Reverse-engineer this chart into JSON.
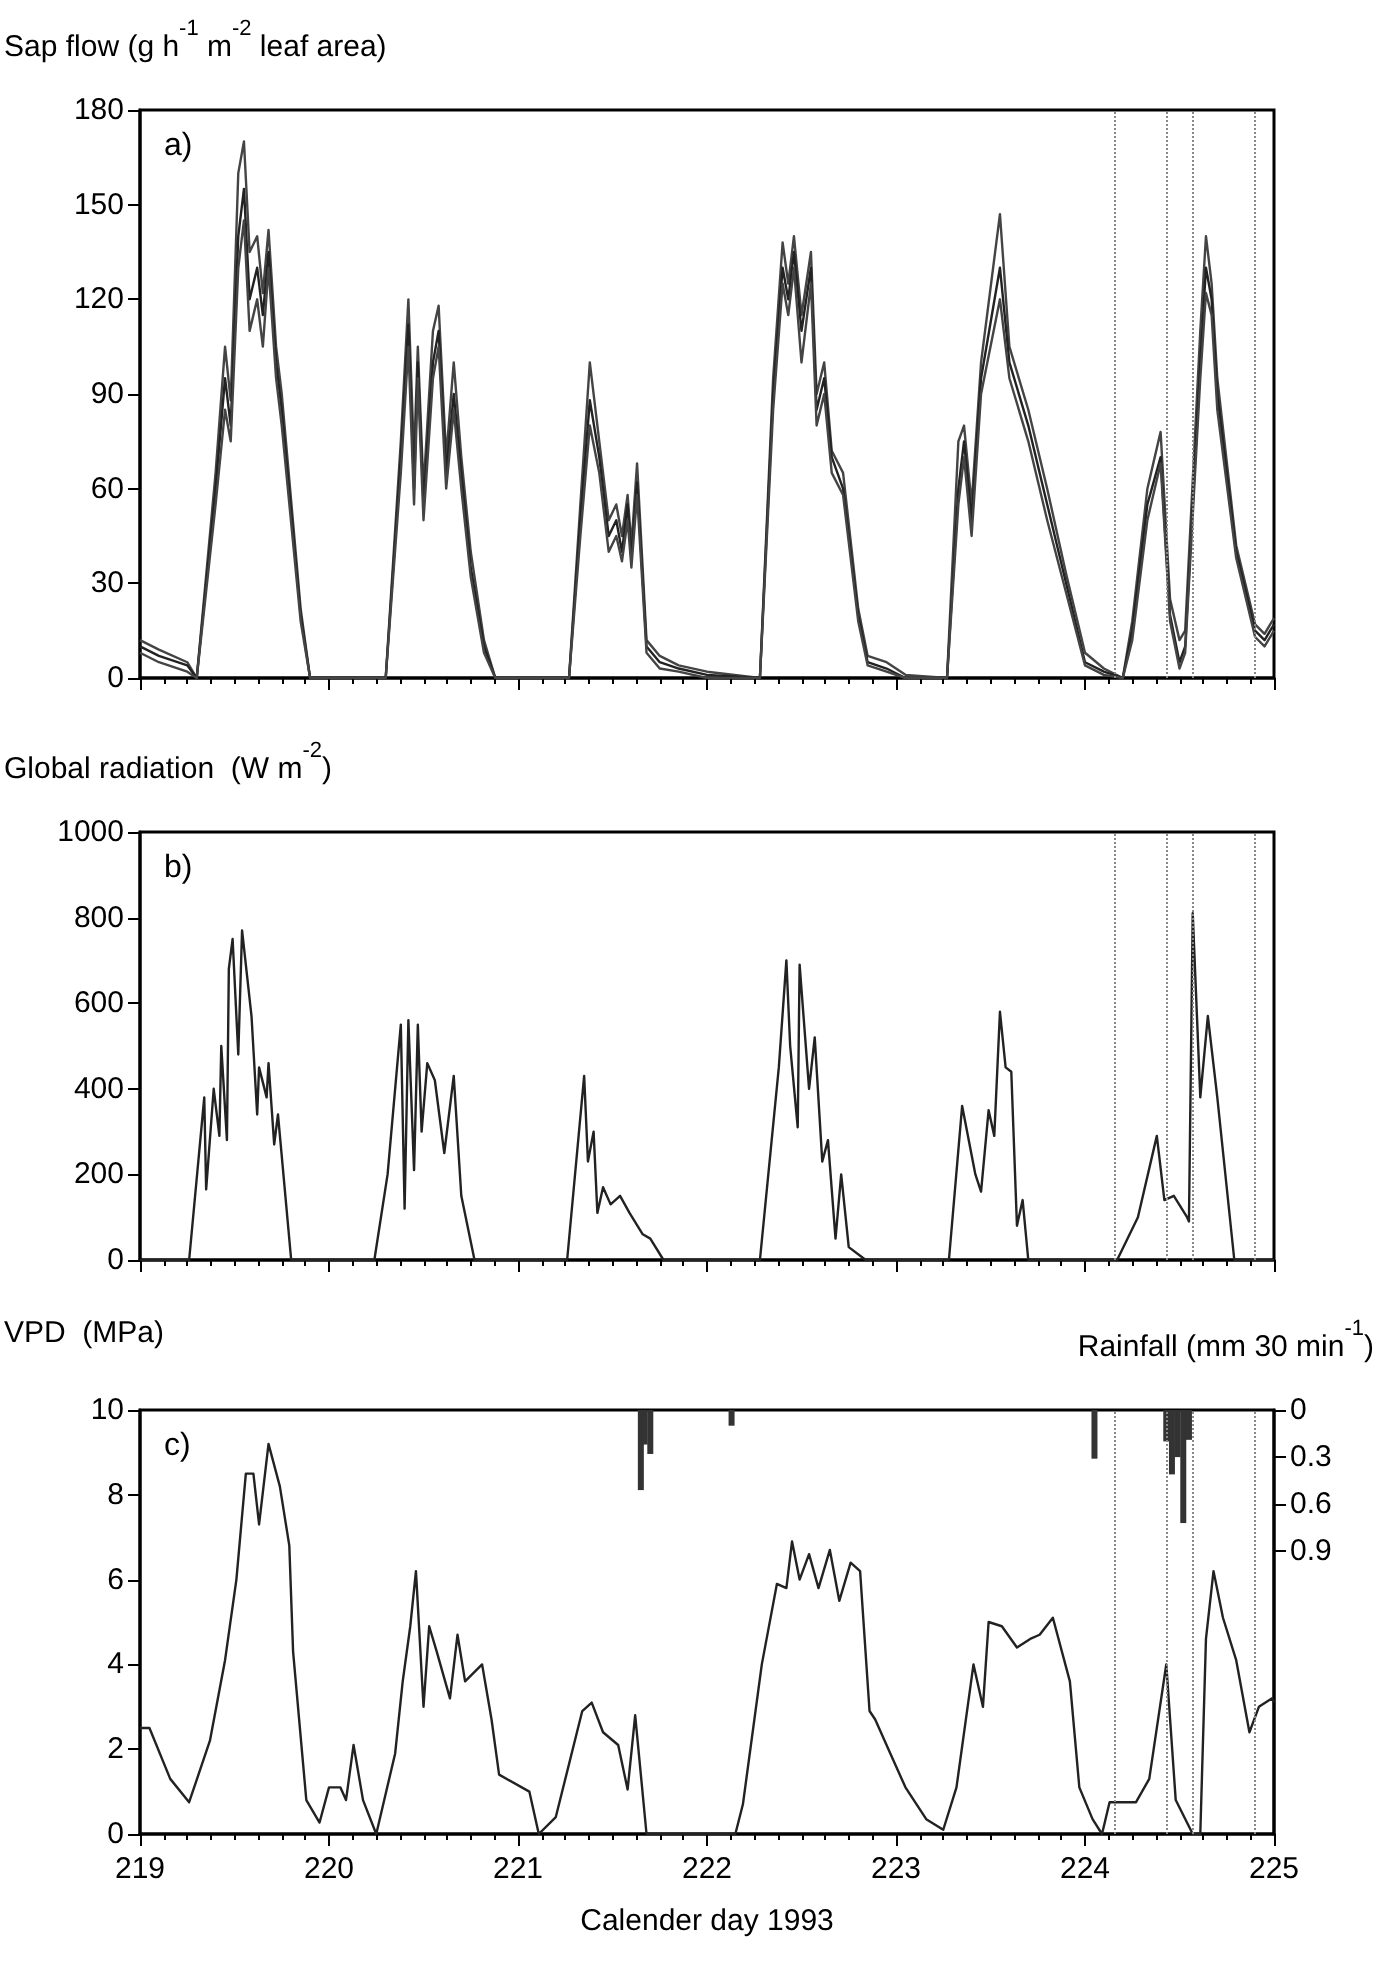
{
  "chart_data": [
    {
      "type": "line",
      "ylabel": "Sap flow (g h$^{-1}$ m$^{-2}$ leaf area)",
      "annotations": [
        "a)"
      ],
      "x": [
        219.0,
        219.1,
        219.25,
        219.3,
        219.4,
        219.45,
        219.48,
        219.52,
        219.55,
        219.58,
        219.62,
        219.65,
        219.68,
        219.72,
        219.75,
        219.85,
        219.9,
        220.0,
        220.3,
        220.38,
        220.42,
        220.45,
        220.47,
        220.5,
        220.55,
        220.58,
        220.62,
        220.66,
        220.7,
        220.75,
        220.82,
        220.88,
        221.27,
        221.33,
        221.38,
        221.43,
        221.48,
        221.52,
        221.55,
        221.58,
        221.6,
        221.63,
        221.68,
        221.75,
        221.85,
        222.0,
        222.28,
        222.35,
        222.4,
        222.43,
        222.46,
        222.5,
        222.55,
        222.58,
        222.62,
        222.66,
        222.72,
        222.8,
        222.85,
        222.95,
        223.05,
        223.27,
        223.33,
        223.36,
        223.4,
        223.45,
        223.55,
        223.6,
        223.7,
        223.8,
        223.9,
        224.0,
        224.1,
        224.2,
        224.25,
        224.33,
        224.4,
        224.45,
        224.5,
        224.53,
        224.61,
        224.64,
        224.67,
        224.7,
        224.8,
        224.9,
        224.95,
        225.0
      ],
      "series": [
        {
          "color": "#444444",
          "values": [
            12,
            9,
            5,
            0,
            65,
            105,
            88,
            160,
            170,
            135,
            140,
            122,
            142,
            105,
            90,
            22,
            0,
            0,
            0,
            75,
            120,
            70,
            105,
            60,
            110,
            118,
            70,
            100,
            70,
            40,
            12,
            0,
            0,
            55,
            100,
            75,
            50,
            55,
            45,
            58,
            42,
            68,
            12,
            7,
            4,
            2,
            0,
            95,
            138,
            125,
            140,
            115,
            135,
            90,
            100,
            72,
            65,
            22,
            7,
            5,
            1,
            0,
            75,
            80,
            55,
            100,
            147,
            105,
            85,
            60,
            33,
            8,
            3,
            0,
            18,
            60,
            78,
            25,
            12,
            15,
            110,
            140,
            125,
            95,
            42,
            17,
            14,
            19
          ]
        },
        {
          "color": "#222222",
          "values": [
            10,
            7,
            4,
            0,
            60,
            95,
            80,
            140,
            155,
            120,
            130,
            115,
            135,
            100,
            85,
            20,
            0,
            0,
            0,
            70,
            112,
            60,
            100,
            55,
            100,
            110,
            65,
            90,
            65,
            35,
            10,
            0,
            0,
            50,
            88,
            70,
            45,
            50,
            40,
            55,
            38,
            62,
            10,
            5,
            3,
            1,
            0,
            90,
            130,
            120,
            135,
            110,
            130,
            85,
            95,
            70,
            60,
            20,
            5,
            3,
            0,
            0,
            60,
            75,
            50,
            95,
            130,
            100,
            80,
            55,
            30,
            5,
            2,
            0,
            15,
            55,
            70,
            20,
            5,
            10,
            100,
            130,
            120,
            90,
            40,
            15,
            12,
            17
          ]
        },
        {
          "color": "#444444",
          "values": [
            8,
            5,
            2,
            0,
            55,
            85,
            75,
            130,
            145,
            110,
            120,
            105,
            130,
            95,
            80,
            18,
            0,
            0,
            0,
            65,
            105,
            55,
            95,
            50,
            95,
            105,
            60,
            85,
            60,
            32,
            8,
            0,
            0,
            45,
            80,
            65,
            40,
            45,
            37,
            50,
            35,
            58,
            8,
            3,
            2,
            0,
            0,
            85,
            125,
            115,
            130,
            100,
            125,
            80,
            90,
            65,
            58,
            18,
            4,
            2,
            0,
            0,
            55,
            70,
            45,
            90,
            120,
            95,
            75,
            50,
            27,
            4,
            1,
            0,
            12,
            50,
            68,
            18,
            3,
            8,
            95,
            122,
            115,
            85,
            38,
            13,
            10,
            15
          ]
        }
      ],
      "xlim": [
        219,
        225
      ],
      "xticks": [
        219,
        220,
        221,
        222,
        223,
        224,
        225
      ],
      "ylim": [
        0,
        180
      ],
      "yticks": [
        0,
        30,
        60,
        90,
        120,
        150,
        180
      ],
      "tick_labels": "y",
      "grid": false,
      "marker": "none",
      "line_style": "solid",
      "ref_lines": [
        {
          "axis": "x",
          "value": 224.16,
          "color": "#888888",
          "line_style": "dotted"
        },
        {
          "axis": "x",
          "value": 224.43,
          "color": "#888888",
          "line_style": "dotted"
        },
        {
          "axis": "x",
          "value": 224.57,
          "color": "#888888",
          "line_style": "dotted"
        },
        {
          "axis": "x",
          "value": 224.9,
          "color": "#888888",
          "line_style": "dotted"
        }
      ]
    },
    {
      "type": "line",
      "ylabel": "Global radiation  (W m$^{-2}$)",
      "annotations": [
        "b)"
      ],
      "series": [
        {
          "color": "#222222",
          "x": [
            219.0,
            219.26,
            219.34,
            219.35,
            219.39,
            219.42,
            219.43,
            219.46,
            219.47,
            219.49,
            219.52,
            219.54,
            219.59,
            219.62,
            219.63,
            219.67,
            219.68,
            219.71,
            219.73,
            219.8,
            220.24,
            220.31,
            220.38,
            220.4,
            220.42,
            220.45,
            220.47,
            220.49,
            220.52,
            220.56,
            220.61,
            220.66,
            220.7,
            220.77,
            221.26,
            221.35,
            221.37,
            221.4,
            221.42,
            221.45,
            221.49,
            221.54,
            221.59,
            221.66,
            221.7,
            221.77,
            222.28,
            222.38,
            222.42,
            222.44,
            222.48,
            222.49,
            222.54,
            222.57,
            222.61,
            222.64,
            222.68,
            222.71,
            222.75,
            222.84,
            223.28,
            223.35,
            223.42,
            223.45,
            223.49,
            223.52,
            223.55,
            223.58,
            223.61,
            223.64,
            223.67,
            223.7,
            224.17,
            224.28,
            224.38,
            224.42,
            224.47,
            224.54,
            224.55,
            224.57,
            224.61,
            224.65,
            224.7,
            224.79,
            225.0
          ],
          "values": [
            0,
            0,
            380,
            165,
            400,
            290,
            500,
            280,
            680,
            750,
            480,
            770,
            570,
            340,
            450,
            380,
            460,
            270,
            340,
            0,
            0,
            200,
            550,
            120,
            560,
            210,
            550,
            300,
            460,
            420,
            250,
            430,
            150,
            0,
            0,
            430,
            230,
            300,
            110,
            170,
            130,
            150,
            110,
            60,
            50,
            0,
            0,
            450,
            700,
            500,
            310,
            690,
            400,
            520,
            230,
            280,
            50,
            200,
            30,
            0,
            0,
            360,
            200,
            160,
            350,
            290,
            580,
            450,
            440,
            80,
            140,
            0,
            0,
            100,
            290,
            140,
            150,
            100,
            90,
            810,
            380,
            570,
            380,
            0,
            0
          ]
        }
      ],
      "xlim": [
        219,
        225
      ],
      "xticks": [
        219,
        220,
        221,
        222,
        223,
        224,
        225
      ],
      "ylim": [
        0,
        1000
      ],
      "yticks": [
        0,
        200,
        400,
        600,
        800,
        1000
      ],
      "tick_labels": "y",
      "grid": false,
      "marker": "none",
      "line_style": "solid",
      "ref_lines": [
        {
          "axis": "x",
          "value": 224.16,
          "color": "#888888",
          "line_style": "dotted"
        },
        {
          "axis": "x",
          "value": 224.43,
          "color": "#888888",
          "line_style": "dotted"
        },
        {
          "axis": "x",
          "value": 224.57,
          "color": "#888888",
          "line_style": "dotted"
        },
        {
          "axis": "x",
          "value": 224.9,
          "color": "#888888",
          "line_style": "dotted"
        }
      ]
    },
    {
      "type": "line",
      "ylabel": "VPD  (MPa)",
      "y2label": "Rainfall (mm 30 min$^{-1}$)",
      "xlabel": "Calender day 1993",
      "annotations": [
        "c)"
      ],
      "series": [
        {
          "type": "line",
          "color": "#222222",
          "x": [
            219.0,
            219.05,
            219.16,
            219.26,
            219.37,
            219.45,
            219.51,
            219.56,
            219.6,
            219.63,
            219.68,
            219.74,
            219.79,
            219.81,
            219.88,
            219.95,
            220.0,
            220.06,
            220.09,
            220.13,
            220.18,
            220.25,
            220.35,
            220.39,
            220.43,
            220.46,
            220.5,
            220.53,
            220.57,
            220.64,
            220.68,
            220.72,
            220.81,
            220.86,
            220.9,
            221.06,
            221.11,
            221.2,
            221.34,
            221.39,
            221.45,
            221.53,
            221.58,
            221.62,
            221.68,
            222.15,
            222.19,
            222.29,
            222.37,
            222.42,
            222.45,
            222.49,
            222.54,
            222.59,
            222.65,
            222.7,
            222.76,
            222.81,
            222.86,
            222.89,
            222.97,
            223.05,
            223.16,
            223.25,
            223.32,
            223.41,
            223.46,
            223.49,
            223.56,
            223.64,
            223.71,
            223.76,
            223.83,
            223.92,
            223.97,
            224.04,
            224.09,
            224.13,
            224.27,
            224.34,
            224.43,
            224.48,
            224.57,
            224.61,
            224.64,
            224.68,
            224.73,
            224.8,
            224.87,
            224.92,
            224.99,
            225.0
          ],
          "values": [
            2.5,
            2.5,
            1.3,
            0.75,
            2.2,
            4.1,
            6.0,
            8.5,
            8.5,
            7.3,
            9.2,
            8.2,
            6.8,
            4.3,
            0.8,
            0.27,
            1.1,
            1.1,
            0.8,
            2.1,
            0.8,
            0,
            1.9,
            3.6,
            4.9,
            6.2,
            3.0,
            4.9,
            4.3,
            3.2,
            4.7,
            3.6,
            4.0,
            2.7,
            1.4,
            1.0,
            0,
            0.4,
            2.9,
            3.1,
            2.4,
            2.1,
            1.05,
            2.8,
            0,
            0,
            0.7,
            4.0,
            5.9,
            5.8,
            6.9,
            6.0,
            6.6,
            5.8,
            6.7,
            5.5,
            6.4,
            6.2,
            2.9,
            2.7,
            1.9,
            1.1,
            0.35,
            0.1,
            1.1,
            4.0,
            3.0,
            5.0,
            4.9,
            4.4,
            4.6,
            4.7,
            5.1,
            3.6,
            1.1,
            0.35,
            0,
            0.75,
            0.75,
            1.3,
            4.0,
            0.8,
            0,
            0,
            4.6,
            6.2,
            5.1,
            4.1,
            2.4,
            3.0,
            3.2,
            3.1
          ]
        },
        {
          "type": "bar",
          "axis": "y2",
          "color": "#333333",
          "x": [
            221.65,
            221.67,
            221.7,
            222.13,
            224.05,
            224.43,
            224.46,
            224.49,
            224.52,
            224.55
          ],
          "values": [
            0.51,
            0.22,
            0.28,
            0.1,
            0.31,
            0.2,
            0.41,
            0.3,
            0.72,
            0.19
          ]
        }
      ],
      "xlim": [
        219,
        225
      ],
      "xticks": [
        219,
        220,
        221,
        222,
        223,
        224,
        225
      ],
      "ylim": [
        0,
        10
      ],
      "yticks": [
        0,
        2,
        4,
        6,
        8,
        10
      ],
      "y2lim": [
        2.7,
        0
      ],
      "y2ticks": [
        0,
        0.3,
        0.6,
        0.9
      ],
      "grid": false,
      "marker": "none",
      "line_style": "solid",
      "ref_lines": [
        {
          "axis": "x",
          "value": 224.16,
          "color": "#888888",
          "line_style": "dotted"
        },
        {
          "axis": "x",
          "value": 224.43,
          "color": "#888888",
          "line_style": "dotted"
        },
        {
          "axis": "x",
          "value": 224.57,
          "color": "#888888",
          "line_style": "dotted"
        },
        {
          "axis": "x",
          "value": 224.9,
          "color": "#888888",
          "line_style": "dotted"
        }
      ]
    }
  ]
}
